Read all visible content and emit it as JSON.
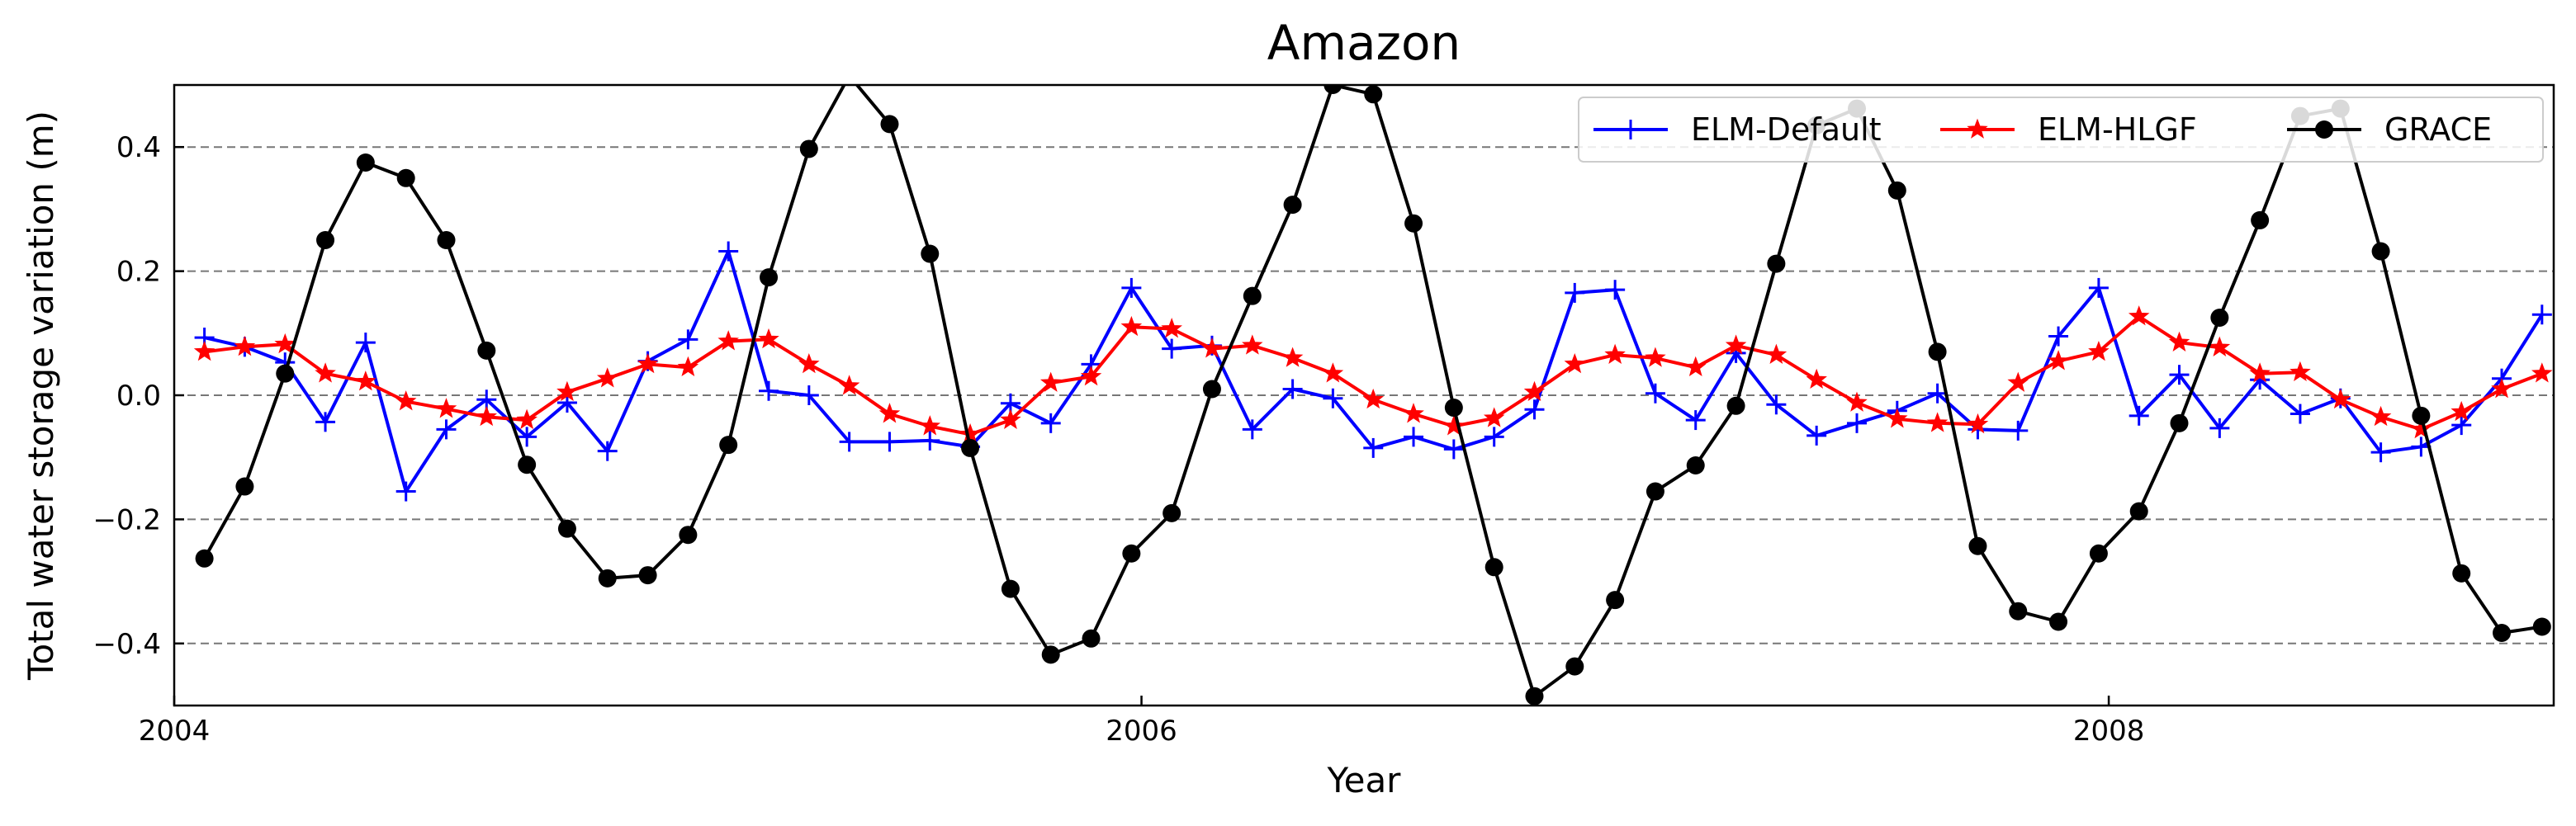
{
  "chart_data": {
    "type": "line",
    "title": "Amazon",
    "xlabel": "Year",
    "ylabel": "Total water storage variation (m)",
    "xlim": [
      2004.0,
      2008.92
    ],
    "ylim": [
      -0.5,
      0.5
    ],
    "xticks": [
      2004,
      2006,
      2008
    ],
    "xtick_labels": [
      "2004",
      "2006",
      "2008"
    ],
    "yticks": [
      -0.4,
      -0.2,
      0.0,
      0.2,
      0.4
    ],
    "ytick_labels": [
      "−0.4",
      "−0.2",
      "0.0",
      "0.2",
      "0.4"
    ],
    "grid": "horizontal dashed",
    "legend_position": "top-right",
    "x": [
      2004.0625,
      2004.1458,
      2004.2292,
      2004.3125,
      2004.3958,
      2004.4792,
      2004.5625,
      2004.6458,
      2004.7292,
      2004.8125,
      2004.8958,
      2004.9792,
      2005.0625,
      2005.1458,
      2005.2292,
      2005.3125,
      2005.3958,
      2005.4792,
      2005.5625,
      2005.6458,
      2005.7292,
      2005.8125,
      2005.8958,
      2005.9792,
      2006.0625,
      2006.1458,
      2006.2292,
      2006.3125,
      2006.3958,
      2006.4792,
      2006.5625,
      2006.6458,
      2006.7292,
      2006.8125,
      2006.8958,
      2006.9792,
      2007.0625,
      2007.1458,
      2007.2292,
      2007.3125,
      2007.3958,
      2007.4792,
      2007.5625,
      2007.6458,
      2007.7292,
      2007.8125,
      2007.8958,
      2007.9792,
      2008.0625,
      2008.1458,
      2008.2292,
      2008.3125,
      2008.3958,
      2008.4792,
      2008.5625,
      2008.6458,
      2008.7292,
      2008.8125,
      2008.8958
    ],
    "series": [
      {
        "name": "ELM-Default",
        "color": "#0000ff",
        "marker": "plus",
        "values": [
          0.093,
          0.078,
          0.053,
          -0.043,
          0.085,
          -0.155,
          -0.055,
          -0.007,
          -0.067,
          -0.012,
          -0.09,
          0.055,
          0.09,
          0.232,
          0.007,
          0.0,
          -0.075,
          -0.075,
          -0.073,
          -0.083,
          -0.013,
          -0.045,
          0.05,
          0.173,
          0.075,
          0.08,
          -0.055,
          0.01,
          -0.005,
          -0.085,
          -0.067,
          -0.087,
          -0.067,
          -0.023,
          0.165,
          0.17,
          0.003,
          -0.04,
          0.068,
          -0.015,
          -0.065,
          -0.045,
          -0.025,
          0.003,
          -0.055,
          -0.057,
          0.095,
          0.173,
          -0.033,
          0.033,
          -0.053,
          0.025,
          -0.03,
          -0.005,
          -0.092,
          -0.083,
          -0.048,
          0.027,
          0.13
        ]
      },
      {
        "name": "ELM-HLGF",
        "color": "#ff0000",
        "marker": "star",
        "values": [
          0.07,
          0.078,
          0.082,
          0.035,
          0.022,
          -0.01,
          -0.022,
          -0.035,
          -0.04,
          0.005,
          0.027,
          0.05,
          0.045,
          0.087,
          0.09,
          0.05,
          0.015,
          -0.03,
          -0.05,
          -0.063,
          -0.04,
          0.02,
          0.03,
          0.11,
          0.107,
          0.075,
          0.08,
          0.06,
          0.035,
          -0.007,
          -0.03,
          -0.05,
          -0.037,
          0.005,
          0.05,
          0.065,
          0.06,
          0.045,
          0.08,
          0.065,
          0.025,
          -0.012,
          -0.038,
          -0.045,
          -0.047,
          0.02,
          0.055,
          0.07,
          0.127,
          0.085,
          0.077,
          0.035,
          0.037,
          -0.007,
          -0.035,
          -0.055,
          -0.027,
          0.01,
          0.035
        ]
      },
      {
        "name": "GRACE",
        "color": "#000000",
        "marker": "circle",
        "values": [
          -0.263,
          -0.147,
          0.035,
          0.25,
          0.375,
          0.35,
          0.25,
          0.072,
          -0.112,
          -0.215,
          -0.295,
          -0.29,
          -0.225,
          -0.08,
          0.19,
          0.397,
          0.515,
          0.437,
          0.228,
          -0.085,
          -0.312,
          -0.418,
          -0.392,
          -0.255,
          -0.19,
          0.01,
          0.16,
          0.307,
          0.5,
          0.485,
          0.277,
          -0.02,
          -0.277,
          -0.485,
          -0.437,
          -0.33,
          -0.155,
          -0.113,
          -0.017,
          0.212,
          0.435,
          0.462,
          0.33,
          0.07,
          -0.243,
          -0.348,
          -0.365,
          -0.255,
          -0.187,
          -0.045,
          0.125,
          0.282,
          0.45,
          0.462,
          0.232,
          -0.033,
          -0.287,
          -0.383,
          -0.373
        ]
      }
    ]
  }
}
